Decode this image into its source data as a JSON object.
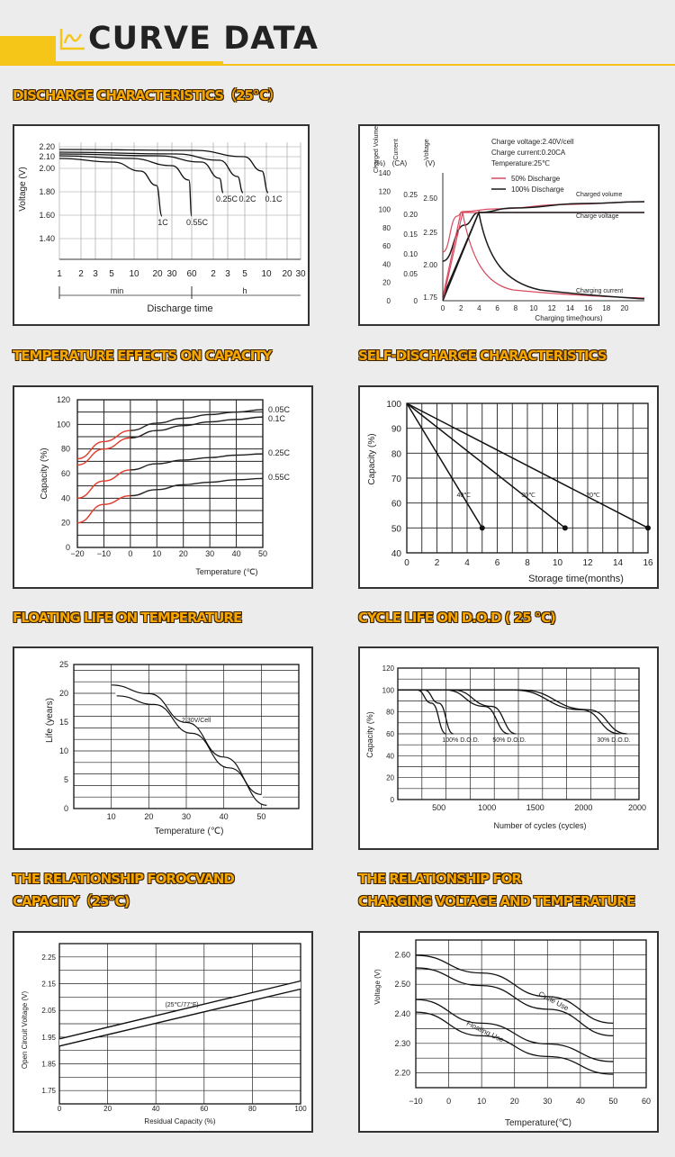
{
  "banner": {
    "title": "CURVE DATA",
    "icon": "curve-chart-icon",
    "accent_color": "#f5c518"
  },
  "sections": {
    "discharge": "DISCHARGE CHARACTERISTICS（25℃）",
    "temperature": "TEMPERATURE EFFECTS ON CAPACITY",
    "self_discharge": "SELF-DISCHARGE CHARACTERISTICS",
    "floating": "FLOATING LIFE ON TEMPERATURE",
    "cycle": "CYCLE LIFE ON D.O.D ( 25 ℃)",
    "ocv_line1": "THE RELATIONSHIP FOROCVAND",
    "ocv_line2": "CAPACITY（25℃)",
    "charging_line1": "THE RELATIONSHIP FOR",
    "charging_line2": "CHARGING VOLTAGE AND TEMPERATURE"
  },
  "chart_data": [
    {
      "id": "discharge",
      "type": "line",
      "ylabel": "Voltage (V)",
      "xlabel": "Discharge time",
      "x_groups": [
        "min",
        "h"
      ],
      "x_ticks": [
        "1",
        "2",
        "3",
        "5",
        "10",
        "20",
        "30",
        "60",
        "2",
        "3",
        "5",
        "10",
        "20",
        "30"
      ],
      "y_ticks": [
        "2.20",
        "2.10",
        "2.00",
        "1.80",
        "1.60",
        "1.40"
      ],
      "ylim": [
        1.3,
        2.25
      ],
      "series": [
        {
          "name": "1C",
          "points": [
            [
              1,
              2.1
            ],
            [
              5,
              2.08
            ],
            [
              10,
              2.04
            ],
            [
              20,
              1.95
            ],
            [
              30,
              1.6
            ]
          ]
        },
        {
          "name": "0.55C",
          "points": [
            [
              1,
              2.12
            ],
            [
              10,
              2.09
            ],
            [
              30,
              2.04
            ],
            [
              60,
              1.6
            ]
          ]
        },
        {
          "name": "0.25C",
          "points": [
            [
              1,
              2.13
            ],
            [
              60,
              2.1
            ],
            [
              120,
              2.05
            ],
            [
              180,
              1.83
            ]
          ]
        },
        {
          "name": "0.2C",
          "points": [
            [
              1,
              2.14
            ],
            [
              60,
              2.12
            ],
            [
              180,
              2.07
            ],
            [
              300,
              1.84
            ]
          ]
        },
        {
          "name": "0.1C",
          "points": [
            [
              1,
              2.15
            ],
            [
              60,
              2.14
            ],
            [
              300,
              2.1
            ],
            [
              600,
              1.85
            ]
          ]
        }
      ]
    },
    {
      "id": "charging",
      "type": "line",
      "xlabel": "Charging time(hours)",
      "y_headers": [
        "Charged Volume",
        "Current",
        "Voltage"
      ],
      "y_units": [
        "(%)",
        "(CA)",
        "(V)"
      ],
      "y_ticks_volume": [
        "140",
        "120",
        "100",
        "80",
        "60",
        "40",
        "20",
        "0"
      ],
      "y_ticks_current": [
        "0.25",
        "0.20",
        "0.15",
        "0.10",
        "0.05",
        "0"
      ],
      "y_ticks_voltage": [
        "2.50",
        "2.25",
        "2.00",
        "1.75"
      ],
      "x_ticks": [
        "0",
        "2",
        "4",
        "6",
        "8",
        "10",
        "12",
        "14",
        "16",
        "18",
        "20"
      ],
      "notes": [
        "Charge voltage:2.40V/cell",
        "Charge current:0.20CA",
        "Temperature:25℃"
      ],
      "curve_labels": [
        "Charged volume",
        "Charge voltage",
        "Charging current"
      ],
      "series": [
        {
          "name": "50% Discharge",
          "color": "#d94a5f"
        },
        {
          "name": "100% Discharge",
          "color": "#1a1a1a"
        }
      ]
    },
    {
      "id": "temperature",
      "type": "line",
      "xlabel": "Temperature (℃)",
      "ylabel": "Capacity (%)",
      "x_ticks": [
        "−20",
        "−10",
        "0",
        "10",
        "20",
        "30",
        "40",
        "50"
      ],
      "y_ticks": [
        "120",
        "100",
        "80",
        "60",
        "40",
        "20",
        "0"
      ],
      "xlim": [
        -20,
        50
      ],
      "ylim": [
        0,
        120
      ],
      "series": [
        {
          "name": "0.05C",
          "x": [
            -20,
            -10,
            0,
            10,
            20,
            30,
            40,
            50
          ],
          "values": [
            72,
            86,
            95,
            101,
            105,
            108,
            110,
            112
          ]
        },
        {
          "name": "0.1C",
          "x": [
            -20,
            -10,
            0,
            10,
            20,
            30,
            40,
            50
          ],
          "values": [
            67,
            80,
            89,
            95,
            99,
            102,
            104,
            106
          ]
        },
        {
          "name": "0.25C",
          "x": [
            -20,
            -10,
            0,
            10,
            20,
            30,
            40,
            50
          ],
          "values": [
            40,
            54,
            63,
            68,
            71,
            73,
            75,
            76
          ]
        },
        {
          "name": "0.55C",
          "x": [
            -20,
            -10,
            0,
            10,
            20,
            30,
            40,
            50
          ],
          "values": [
            20,
            35,
            42,
            47,
            51,
            53,
            55,
            56
          ]
        }
      ]
    },
    {
      "id": "self_discharge",
      "type": "line",
      "xlabel": "Storage time(months)",
      "ylabel": "Capacity (%)",
      "x_ticks": [
        "0",
        "2",
        "4",
        "6",
        "8",
        "10",
        "12",
        "14",
        "16"
      ],
      "y_ticks": [
        "100",
        "90",
        "80",
        "70",
        "60",
        "50",
        "40"
      ],
      "xlim": [
        0,
        16
      ],
      "ylim": [
        40,
        100
      ],
      "series": [
        {
          "name": "40℃",
          "x": [
            0,
            5
          ],
          "values": [
            100,
            50
          ]
        },
        {
          "name": "30℃",
          "x": [
            0,
            10.5
          ],
          "values": [
            100,
            50
          ]
        },
        {
          "name": "20℃",
          "x": [
            0,
            16
          ],
          "values": [
            100,
            50
          ]
        }
      ]
    },
    {
      "id": "floating",
      "type": "line",
      "xlabel": "Temperature (℃)",
      "ylabel": "Life (years)",
      "x_ticks": [
        "10",
        "20",
        "30",
        "40",
        "50"
      ],
      "y_ticks": [
        "25",
        "20",
        "15",
        "10",
        "5",
        "0"
      ],
      "xlim": [
        0,
        60
      ],
      "ylim": [
        0,
        25
      ],
      "series": [
        {
          "name": "2.30V/Cell",
          "x": [
            10,
            20,
            30,
            40,
            50
          ],
          "values": [
            20.5,
            19,
            14,
            8,
            1.5
          ]
        }
      ]
    },
    {
      "id": "cycle",
      "type": "line",
      "xlabel": "Number of cycles (cycles)",
      "ylabel": "Capacity (%)",
      "x_ticks": [
        "500",
        "1000",
        "1500",
        "2000"
      ],
      "x_tick_extra": "2000",
      "y_ticks": [
        "120",
        "100",
        "80",
        "60",
        "40",
        "20",
        "0"
      ],
      "xlim": [
        0,
        2500
      ],
      "ylim": [
        0,
        120
      ],
      "series": [
        {
          "name": "100% D.O.D.",
          "x": [
            0,
            200,
            350,
            500
          ],
          "values": [
            100,
            100,
            88,
            60
          ]
        },
        {
          "name": "50% D.O.D.",
          "x": [
            0,
            500,
            900,
            1150
          ],
          "values": [
            100,
            100,
            85,
            60
          ]
        },
        {
          "name": "30% D.O.D.",
          "x": [
            0,
            1200,
            1900,
            2300
          ],
          "values": [
            100,
            100,
            82,
            60
          ]
        }
      ]
    },
    {
      "id": "ocv",
      "type": "line",
      "xlabel": "Residual Capacity (%)",
      "ylabel": "Open Circuit Voltage (V)",
      "x_ticks": [
        "0",
        "20",
        "40",
        "60",
        "80",
        "100"
      ],
      "y_ticks": [
        "2.25",
        "2.15",
        "2.05",
        "1.95",
        "1.85",
        "1.75"
      ],
      "xlim": [
        0,
        100
      ],
      "ylim": [
        1.7,
        2.3
      ],
      "series": [
        {
          "name": "(25℃/77°F)",
          "x": [
            0,
            100
          ],
          "values": [
            1.93,
            2.15
          ]
        }
      ]
    },
    {
      "id": "charging_voltage",
      "type": "line",
      "xlabel": "Temperature(℃)",
      "ylabel": "Voltage (V)",
      "x_ticks": [
        "−10",
        "0",
        "10",
        "20",
        "30",
        "40",
        "50",
        "60"
      ],
      "y_ticks": [
        "2.60",
        "2.50",
        "2.40",
        "2.30",
        "2.20"
      ],
      "xlim": [
        -10,
        60
      ],
      "ylim": [
        2.15,
        2.65
      ],
      "series": [
        {
          "name": "Cycle Use",
          "x": [
            -10,
            10,
            30,
            50
          ],
          "values": [
            2.58,
            2.52,
            2.44,
            2.35
          ]
        },
        {
          "name": "Floating Use",
          "x": [
            -10,
            10,
            30,
            50
          ],
          "values": [
            2.43,
            2.35,
            2.28,
            2.22
          ]
        }
      ]
    }
  ]
}
